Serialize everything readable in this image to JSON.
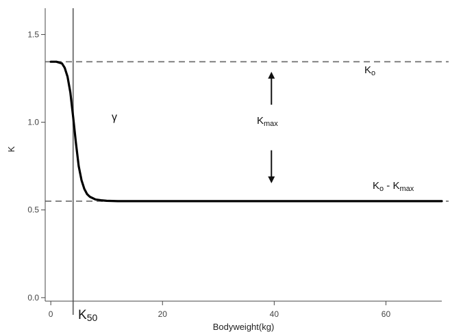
{
  "chart_data": {
    "type": "line",
    "title": "",
    "xlabel": "Bodyweight(kg)",
    "ylabel": "K",
    "xlim": [
      -1,
      70
    ],
    "ylim": [
      -0.02,
      1.65
    ],
    "x_ticks": [
      0,
      20,
      40,
      60
    ],
    "y_ticks": [
      0.0,
      0.5,
      1.0,
      1.5
    ],
    "x_tick_labels": [
      "0",
      "20",
      "40",
      "60"
    ],
    "y_tick_labels": [
      "0.0",
      "0.5",
      "1.0",
      "1.5"
    ],
    "grid": false,
    "legend": "none",
    "series": [
      {
        "style": "solid-thick",
        "color": "#000000",
        "x": [
          0,
          1,
          2,
          2.5,
          3,
          3.5,
          4,
          4.5,
          5,
          5.5,
          6,
          6.5,
          7,
          8,
          9,
          10,
          12,
          15,
          20,
          30,
          40,
          50,
          60,
          70
        ],
        "y": [
          1.345,
          1.345,
          1.335,
          1.31,
          1.26,
          1.17,
          1.03,
          0.88,
          0.75,
          0.67,
          0.62,
          0.59,
          0.575,
          0.56,
          0.555,
          0.552,
          0.55,
          0.55,
          0.55,
          0.55,
          0.55,
          0.55,
          0.55,
          0.55
        ]
      }
    ],
    "reference_lines": {
      "horizontal": [
        {
          "y": 1.345,
          "style": "dashed",
          "color": "#888888"
        },
        {
          "y": 0.55,
          "style": "dashed",
          "color": "#888888"
        }
      ],
      "vertical": [
        {
          "x": 4,
          "style": "solid",
          "color": "#777777"
        }
      ]
    },
    "annotations": {
      "k0": "K",
      "k0_sub": "o",
      "k0_minus_kmax": "K",
      "k0_minus_kmax_sub": "o",
      "k0_minus_kmax_rest": " - K",
      "k0_minus_kmax_sub2": "max",
      "kmax": "K",
      "kmax_sub": "max",
      "gamma": "γ",
      "k50": "K",
      "k50_sub": "50"
    },
    "arrows": [
      {
        "direction": "up",
        "x": 39.5,
        "y_from": 1.1,
        "y_to": 1.28
      },
      {
        "direction": "down",
        "x": 39.5,
        "y_from": 0.84,
        "y_to": 0.66
      }
    ]
  }
}
